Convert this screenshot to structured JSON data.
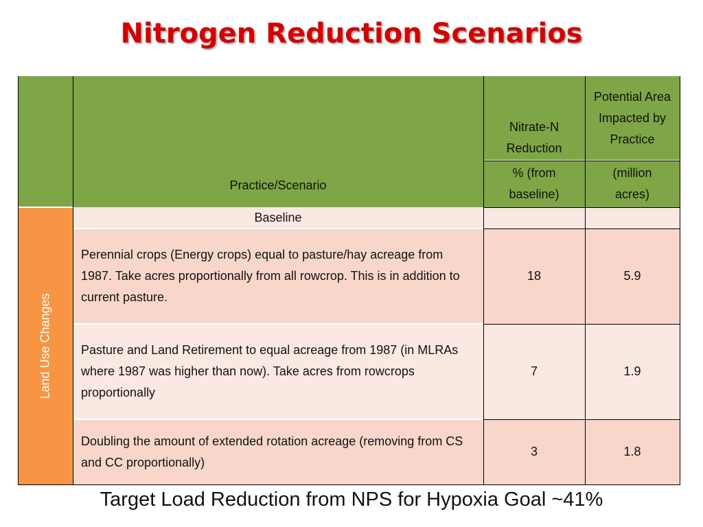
{
  "title": "Nitrogen Reduction Scenarios",
  "table": {
    "header": {
      "practice_label": "Practice/Scenario",
      "col1_top": "Nitrate-N Reduction",
      "col1_unit": "% (from baseline)",
      "col2_top": "Potential Area Impacted by Practice",
      "col2_unit": "(million acres)"
    },
    "group_label": "Land Use Changes",
    "rows": [
      {
        "scenario": "Baseline",
        "reduction": "",
        "area": ""
      },
      {
        "scenario": "Perennial crops (Energy crops) equal to pasture/hay acreage from 1987. Take acres proportionally from all rowcrop. This is in addition to current pasture.",
        "reduction": "18",
        "area": "5.9"
      },
      {
        "scenario": "Pasture and Land Retirement to equal acreage from 1987 (in MLRAs where 1987 was higher than now). Take acres from rowcrops proportionally",
        "reduction": "7",
        "area": "1.9"
      },
      {
        "scenario": "Doubling the amount of extended rotation acreage (removing from CS and CC proportionally)",
        "reduction": "3",
        "area": "1.8"
      }
    ]
  },
  "footer": "Target Load Reduction from NPS for Hypoxia Goal ~41%",
  "colors": {
    "title": "#d40000",
    "header_bg": "#7ea646",
    "group_bg": "#f79545",
    "row_light": "#fbe8e3",
    "row_dark": "#f8d7ca"
  }
}
